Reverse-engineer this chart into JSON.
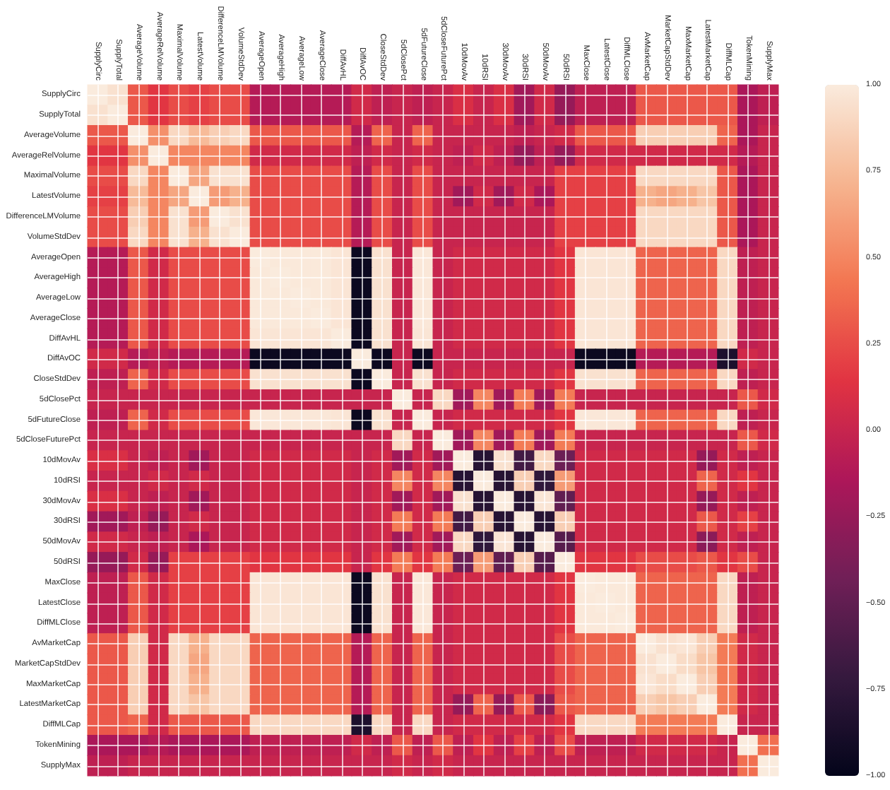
{
  "chart_data": {
    "type": "heatmap",
    "categories": [
      "SupplyCirc",
      "SupplyTotal",
      "AverageVolume",
      "AverageRelVolume",
      "MaximalVolume",
      "LatestVolume",
      "DifferenceLMVolume",
      "VolumeStdDev",
      "AverageOpen",
      "AverageHigh",
      "AverageLow",
      "AverageClose",
      "DiffAvHL",
      "DiffAvOC",
      "CloseStdDev",
      "5dClosePct",
      "5dFutureClose",
      "5dCloseFuturePct",
      "10dMovAv",
      "10dRSI",
      "30dMovAv",
      "30dRSI",
      "50dMovAv",
      "50dRSI",
      "MaxClose",
      "LatestClose",
      "DiffMLClose",
      "AvMarketCap",
      "MarketCapStdDev",
      "MaxMarketCap",
      "LatestMarketCap",
      "DiffMLCap",
      "TokenMining",
      "SupplyMax"
    ],
    "y_categories": [
      "SupplyCirc",
      "SupplyTotal",
      "AverageVolume",
      "AverageRelVolume",
      "MaximalVolume",
      "LatestVolume",
      "DifferenceLMVolume",
      "VolumeStdDev",
      "AverageOpen",
      "AverageHigh",
      "AverageLow",
      "AverageClose",
      "DiffAvHL",
      "DiffAvOC",
      "CloseStdDev",
      "5dClosePct",
      "5dFutureClose",
      "5dCloseFuturePct",
      "10dMovAv",
      "10dRSI",
      "30dMovAv",
      "30dRSI",
      "50dMovAv",
      "50dRSI",
      "MaxClose",
      "LatestClose",
      "DiffMLClose",
      "AvMarketCap",
      "MarketCapStdDev",
      "MaxMarketCap",
      "LatestMarketCap",
      "DiffMLCap",
      "TokenMining",
      "SupplyMax"
    ],
    "cells": [
      [
        1,
        0.95,
        0.3,
        0.15,
        0.25,
        0.2,
        0.25,
        0.25,
        -0.1,
        -0.1,
        -0.1,
        -0.1,
        -0.1,
        0.05,
        -0.05,
        0,
        -0.05,
        0,
        0.1,
        0,
        0.1,
        -0.2,
        0.05,
        -0.25,
        -0.05,
        -0.05,
        -0.05,
        0.3,
        0.3,
        0.3,
        0.3,
        0.3,
        -0.15,
        -0.05
      ],
      [
        0.95,
        1,
        0.3,
        0.15,
        0.25,
        0.2,
        0.25,
        0.25,
        -0.1,
        -0.1,
        -0.1,
        -0.1,
        -0.1,
        0.05,
        -0.05,
        0,
        -0.05,
        0,
        0.1,
        0,
        0.1,
        -0.2,
        0.05,
        -0.25,
        -0.05,
        -0.05,
        -0.05,
        0.3,
        0.3,
        0.3,
        0.3,
        0.3,
        -0.15,
        -0.05
      ],
      [
        0.3,
        0.3,
        1,
        0.55,
        0.9,
        0.75,
        0.85,
        0.9,
        0.3,
        0.3,
        0.3,
        0.3,
        0.3,
        -0.1,
        0.35,
        0,
        0.35,
        0,
        0,
        0,
        0,
        -0.05,
        0,
        0.05,
        0.3,
        0.3,
        0.3,
        0.85,
        0.85,
        0.85,
        0.85,
        0.35,
        -0.15,
        0
      ],
      [
        0.15,
        0.15,
        0.55,
        1,
        0.5,
        0.5,
        0.5,
        0.5,
        0.05,
        0.05,
        0.05,
        0.05,
        0.05,
        -0.05,
        0.05,
        0,
        0.05,
        0,
        -0.05,
        0.05,
        -0.05,
        -0.25,
        -0.05,
        -0.25,
        0.05,
        0.05,
        0.05,
        0.05,
        0.05,
        0.05,
        0.05,
        0.05,
        -0.1,
        0
      ],
      [
        0.25,
        0.25,
        0.9,
        0.5,
        1,
        0.65,
        0.95,
        0.95,
        0.25,
        0.25,
        0.25,
        0.25,
        0.25,
        -0.1,
        0.25,
        0,
        0.25,
        0,
        0,
        0,
        0,
        0,
        0,
        0.2,
        0.2,
        0.2,
        0.2,
        0.9,
        0.9,
        0.9,
        0.9,
        0.3,
        -0.15,
        0
      ],
      [
        0.2,
        0.2,
        0.75,
        0.5,
        0.65,
        1,
        0.6,
        0.7,
        0.25,
        0.25,
        0.25,
        0.25,
        0.25,
        -0.1,
        0.25,
        0,
        0.25,
        0,
        -0.2,
        0.05,
        -0.2,
        0.05,
        -0.15,
        0.2,
        0.2,
        0.2,
        0.2,
        0.7,
        0.65,
        0.7,
        0.8,
        0.3,
        -0.15,
        0
      ],
      [
        0.25,
        0.25,
        0.85,
        0.5,
        0.95,
        0.6,
        1,
        0.95,
        0.25,
        0.25,
        0.25,
        0.25,
        0.25,
        -0.1,
        0.25,
        0,
        0.25,
        0,
        0,
        0,
        0,
        0,
        0,
        0.2,
        0.2,
        0.2,
        0.2,
        0.9,
        0.9,
        0.9,
        0.9,
        0.3,
        -0.15,
        0
      ],
      [
        0.25,
        0.25,
        0.9,
        0.5,
        0.95,
        0.7,
        0.95,
        1,
        0.25,
        0.25,
        0.25,
        0.25,
        0.25,
        -0.1,
        0.25,
        0,
        0.25,
        0,
        0,
        0,
        0,
        0,
        0,
        0.2,
        0.2,
        0.2,
        0.2,
        0.9,
        0.9,
        0.9,
        0.9,
        0.3,
        -0.15,
        0
      ],
      [
        -0.1,
        -0.1,
        0.3,
        0.05,
        0.25,
        0.25,
        0.25,
        0.25,
        1,
        0.99,
        0.99,
        0.99,
        0.97,
        -0.95,
        0.95,
        0,
        0.98,
        0,
        0.05,
        0.05,
        0.05,
        0.05,
        0.05,
        0.15,
        0.97,
        0.97,
        0.97,
        0.35,
        0.35,
        0.35,
        0.35,
        0.9,
        -0.05,
        0
      ],
      [
        -0.1,
        -0.1,
        0.3,
        0.05,
        0.25,
        0.25,
        0.25,
        0.25,
        0.99,
        1,
        0.99,
        0.99,
        0.97,
        -0.95,
        0.95,
        0,
        0.98,
        0,
        0.05,
        0.05,
        0.05,
        0.05,
        0.05,
        0.15,
        0.97,
        0.97,
        0.97,
        0.35,
        0.35,
        0.35,
        0.35,
        0.9,
        -0.05,
        0
      ],
      [
        -0.1,
        -0.1,
        0.3,
        0.05,
        0.25,
        0.25,
        0.25,
        0.25,
        0.99,
        0.99,
        1,
        0.99,
        0.97,
        -0.95,
        0.95,
        0,
        0.98,
        0,
        0.05,
        0.05,
        0.05,
        0.05,
        0.05,
        0.15,
        0.97,
        0.97,
        0.97,
        0.35,
        0.35,
        0.35,
        0.35,
        0.9,
        -0.05,
        0
      ],
      [
        -0.1,
        -0.1,
        0.3,
        0.05,
        0.25,
        0.25,
        0.25,
        0.25,
        0.99,
        0.99,
        0.99,
        1,
        0.97,
        -0.95,
        0.95,
        0,
        0.98,
        0,
        0.05,
        0.05,
        0.05,
        0.05,
        0.05,
        0.15,
        0.97,
        0.97,
        0.97,
        0.35,
        0.35,
        0.35,
        0.35,
        0.9,
        -0.05,
        0
      ],
      [
        -0.1,
        -0.1,
        0.3,
        0.05,
        0.25,
        0.25,
        0.25,
        0.25,
        0.97,
        0.97,
        0.97,
        0.97,
        1,
        -0.95,
        0.95,
        0,
        0.97,
        0,
        0.05,
        0.05,
        0.05,
        0.05,
        0.05,
        0.15,
        0.97,
        0.97,
        0.97,
        0.35,
        0.35,
        0.35,
        0.35,
        0.9,
        -0.05,
        0
      ],
      [
        0.05,
        0.05,
        -0.1,
        -0.05,
        -0.1,
        -0.1,
        -0.1,
        -0.1,
        -0.95,
        -0.95,
        -0.95,
        -0.95,
        -0.95,
        1,
        -0.95,
        0,
        -0.95,
        0,
        0,
        0,
        0,
        0,
        0,
        0,
        -0.95,
        -0.95,
        -0.95,
        -0.1,
        -0.1,
        -0.1,
        -0.1,
        -0.85,
        0.05,
        0
      ],
      [
        -0.05,
        -0.05,
        0.35,
        0.05,
        0.25,
        0.25,
        0.25,
        0.25,
        0.95,
        0.95,
        0.95,
        0.95,
        0.95,
        -0.95,
        1,
        0,
        0.95,
        0,
        0.05,
        0.05,
        0.05,
        0.05,
        0.05,
        0.15,
        0.95,
        0.95,
        0.95,
        0.35,
        0.35,
        0.35,
        0.35,
        0.9,
        -0.05,
        0
      ],
      [
        0,
        0,
        0,
        0,
        0,
        0,
        0,
        0,
        0,
        0,
        0,
        0,
        0,
        0,
        0,
        1,
        0,
        0.9,
        -0.2,
        0.5,
        -0.2,
        0.45,
        -0.2,
        0.45,
        0,
        0,
        0,
        0,
        0,
        0,
        0,
        0,
        0.3,
        0.05
      ],
      [
        -0.05,
        -0.05,
        0.35,
        0.05,
        0.25,
        0.25,
        0.25,
        0.25,
        0.98,
        0.98,
        0.98,
        0.98,
        0.97,
        -0.95,
        0.95,
        0,
        1,
        0,
        0.05,
        0.05,
        0.05,
        0.05,
        0.05,
        0.15,
        0.98,
        0.98,
        0.98,
        0.35,
        0.35,
        0.35,
        0.35,
        0.9,
        -0.05,
        0
      ],
      [
        0,
        0,
        0,
        0,
        0,
        0,
        0,
        0,
        0,
        0,
        0,
        0,
        0,
        0,
        0,
        0.9,
        0,
        1,
        -0.2,
        0.5,
        -0.2,
        0.45,
        -0.2,
        0.45,
        0,
        0,
        0,
        0,
        0,
        0,
        0,
        0,
        0.3,
        0.05
      ],
      [
        0.1,
        0.1,
        0,
        -0.05,
        0,
        -0.2,
        0,
        0,
        0.05,
        0.05,
        0.05,
        0.05,
        0.05,
        0,
        0.05,
        -0.2,
        0.05,
        -0.2,
        1,
        -0.8,
        0.95,
        -0.65,
        0.9,
        -0.45,
        0.05,
        0.05,
        0.05,
        0.05,
        0.05,
        0.05,
        -0.25,
        0.05,
        -0.05,
        0
      ],
      [
        0,
        0,
        0,
        0.05,
        0,
        0.05,
        0,
        0,
        0.05,
        0.05,
        0.05,
        0.05,
        0.05,
        0,
        0.05,
        0.5,
        0.05,
        0.5,
        -0.8,
        1,
        -0.8,
        0.85,
        -0.75,
        0.6,
        0.05,
        0.05,
        0.05,
        0.05,
        0.05,
        0.05,
        0.35,
        0.05,
        0.15,
        0
      ],
      [
        0.1,
        0.1,
        0,
        -0.05,
        0,
        -0.2,
        0,
        0,
        0.05,
        0.05,
        0.05,
        0.05,
        0.05,
        0,
        0.05,
        -0.2,
        0.05,
        -0.2,
        0.95,
        -0.8,
        1,
        -0.8,
        0.97,
        -0.5,
        0.05,
        0.05,
        0.05,
        0.05,
        0.05,
        0.05,
        -0.25,
        0.05,
        -0.05,
        0
      ],
      [
        -0.2,
        -0.2,
        -0.05,
        -0.25,
        0,
        0.05,
        0,
        0,
        0.05,
        0.05,
        0.05,
        0.05,
        0.05,
        0,
        0.05,
        0.45,
        0.05,
        0.45,
        -0.65,
        0.85,
        -0.8,
        1,
        -0.8,
        0.85,
        0.05,
        0.05,
        0.05,
        0.05,
        0.05,
        0.05,
        0.3,
        0.05,
        0.2,
        0
      ],
      [
        0.05,
        0.05,
        0,
        -0.05,
        0,
        -0.15,
        0,
        0,
        0.05,
        0.05,
        0.05,
        0.05,
        0.05,
        0,
        0.05,
        -0.2,
        0.05,
        -0.2,
        0.9,
        -0.75,
        0.97,
        -0.8,
        1,
        -0.55,
        0.05,
        0.05,
        0.05,
        0.05,
        0.05,
        0.05,
        -0.3,
        0.05,
        -0.05,
        0
      ],
      [
        -0.25,
        -0.25,
        0.05,
        -0.25,
        0.2,
        0.2,
        0.2,
        0.2,
        0.15,
        0.15,
        0.15,
        0.15,
        0.15,
        0,
        0.15,
        0.45,
        0.15,
        0.45,
        -0.45,
        0.6,
        -0.5,
        0.85,
        -0.55,
        1,
        0.15,
        0.15,
        0.15,
        0.25,
        0.25,
        0.25,
        0.3,
        0.15,
        0.25,
        0
      ],
      [
        -0.05,
        -0.05,
        0.3,
        0.05,
        0.2,
        0.2,
        0.2,
        0.2,
        0.97,
        0.97,
        0.97,
        0.97,
        0.97,
        -0.95,
        0.95,
        0,
        0.98,
        0,
        0.05,
        0.05,
        0.05,
        0.05,
        0.05,
        0.15,
        1,
        0.99,
        0.99,
        0.35,
        0.35,
        0.35,
        0.35,
        0.9,
        -0.05,
        0
      ],
      [
        -0.05,
        -0.05,
        0.3,
        0.05,
        0.2,
        0.2,
        0.2,
        0.2,
        0.97,
        0.97,
        0.97,
        0.97,
        0.97,
        -0.95,
        0.95,
        0,
        0.98,
        0,
        0.05,
        0.05,
        0.05,
        0.05,
        0.05,
        0.15,
        0.99,
        1,
        0.99,
        0.35,
        0.35,
        0.35,
        0.35,
        0.9,
        -0.05,
        0
      ],
      [
        -0.05,
        -0.05,
        0.3,
        0.05,
        0.2,
        0.2,
        0.2,
        0.2,
        0.97,
        0.97,
        0.97,
        0.97,
        0.97,
        -0.95,
        0.95,
        0,
        0.98,
        0,
        0.05,
        0.05,
        0.05,
        0.05,
        0.05,
        0.15,
        0.99,
        0.99,
        1,
        0.35,
        0.35,
        0.35,
        0.35,
        0.9,
        -0.05,
        0
      ],
      [
        0.3,
        0.3,
        0.85,
        0.05,
        0.9,
        0.7,
        0.9,
        0.9,
        0.35,
        0.35,
        0.35,
        0.35,
        0.35,
        -0.1,
        0.35,
        0,
        0.35,
        0,
        0.05,
        0.05,
        0.05,
        0.05,
        0.05,
        0.25,
        0.35,
        0.35,
        0.35,
        1,
        0.95,
        0.97,
        0.85,
        0.45,
        0.05,
        0
      ],
      [
        0.3,
        0.3,
        0.85,
        0.05,
        0.9,
        0.65,
        0.9,
        0.9,
        0.35,
        0.35,
        0.35,
        0.35,
        0.35,
        -0.1,
        0.35,
        0,
        0.35,
        0,
        0.05,
        0.05,
        0.05,
        0.05,
        0.05,
        0.25,
        0.35,
        0.35,
        0.35,
        0.95,
        1,
        0.92,
        0.8,
        0.45,
        0.05,
        0
      ],
      [
        0.3,
        0.3,
        0.85,
        0.05,
        0.9,
        0.7,
        0.9,
        0.9,
        0.35,
        0.35,
        0.35,
        0.35,
        0.35,
        -0.1,
        0.35,
        0,
        0.35,
        0,
        0.05,
        0.05,
        0.05,
        0.05,
        0.05,
        0.25,
        0.35,
        0.35,
        0.35,
        0.97,
        0.92,
        1,
        0.85,
        0.45,
        0.05,
        0
      ],
      [
        0.3,
        0.3,
        0.85,
        0.05,
        0.9,
        0.8,
        0.9,
        0.9,
        0.35,
        0.35,
        0.35,
        0.35,
        0.35,
        -0.1,
        0.35,
        0,
        0.35,
        0,
        -0.25,
        0.35,
        -0.25,
        0.3,
        -0.3,
        0.3,
        0.35,
        0.35,
        0.35,
        0.85,
        0.8,
        0.85,
        1,
        0.45,
        0.05,
        0
      ],
      [
        0.3,
        0.3,
        0.35,
        0.05,
        0.3,
        0.3,
        0.3,
        0.3,
        0.9,
        0.9,
        0.9,
        0.9,
        0.9,
        -0.85,
        0.9,
        0,
        0.9,
        0,
        0.05,
        0.05,
        0.05,
        0.05,
        0.05,
        0.15,
        0.9,
        0.9,
        0.9,
        0.45,
        0.45,
        0.45,
        0.45,
        1,
        0,
        0
      ],
      [
        -0.15,
        -0.15,
        -0.15,
        -0.1,
        -0.15,
        -0.15,
        -0.15,
        -0.15,
        -0.05,
        -0.05,
        -0.05,
        -0.05,
        -0.05,
        0.05,
        -0.05,
        0.3,
        -0.05,
        0.3,
        -0.05,
        0.15,
        -0.05,
        0.2,
        -0.05,
        0.25,
        -0.05,
        -0.05,
        -0.05,
        0.05,
        0.05,
        0.05,
        0.05,
        0,
        1,
        0.4
      ],
      [
        -0.05,
        -0.05,
        0,
        0,
        0,
        0,
        0,
        0,
        0,
        0,
        0,
        0,
        0,
        0,
        0,
        0.05,
        0,
        0.05,
        0,
        0,
        0,
        0,
        0,
        0,
        0,
        0,
        0,
        0,
        0,
        0,
        0,
        0,
        0.4,
        1
      ]
    ],
    "clim": [
      -1,
      1
    ],
    "cticks": [
      {
        "value": -1,
        "label": "−1.00"
      },
      {
        "value": -0.75,
        "label": "−0.75"
      },
      {
        "value": -0.5,
        "label": "−0.50"
      },
      {
        "value": -0.25,
        "label": "−0.25"
      },
      {
        "value": 0,
        "label": "0.00"
      },
      {
        "value": 0.25,
        "label": "0.25"
      },
      {
        "value": 0.5,
        "label": "0.50"
      },
      {
        "value": 0.75,
        "label": "0.75"
      },
      {
        "value": 1,
        "label": "1.00"
      }
    ],
    "grid": true
  }
}
